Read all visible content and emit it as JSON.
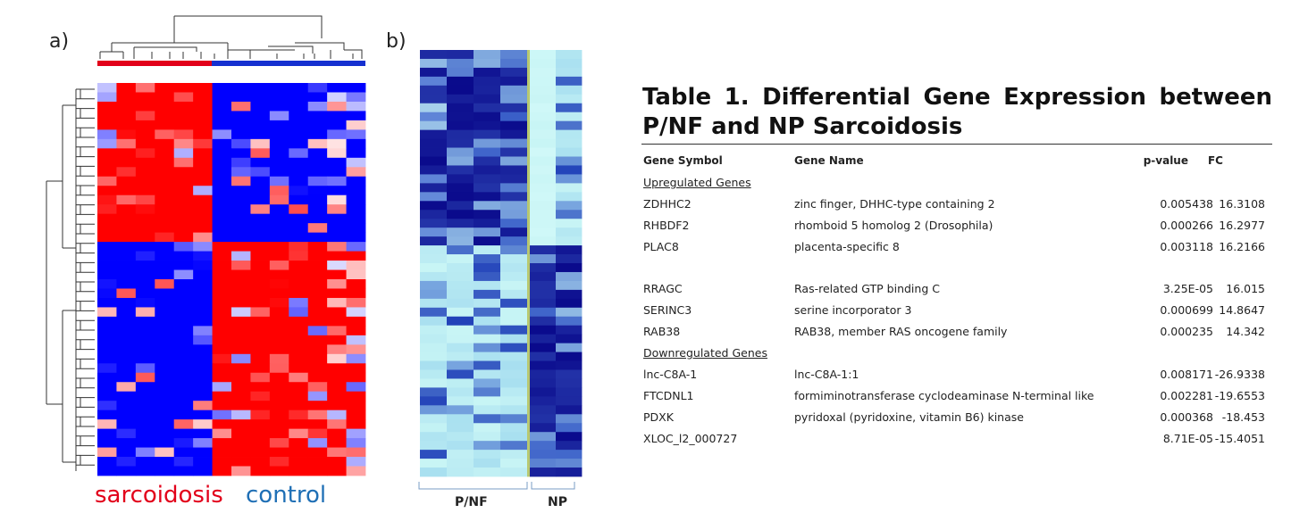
{
  "panel_a": {
    "label": "a)",
    "group_labels": {
      "sarcoidosis": "sarcoidosis",
      "control": "control"
    },
    "colors": {
      "high": "#ff0000",
      "low": "#0000ff",
      "mid": "#ffffff"
    }
  },
  "panel_b": {
    "label": "b)",
    "group_labels": {
      "pnf": "P/NF",
      "np": "NP"
    },
    "colors": {
      "high": "#0a0a8c",
      "low": "#c8f5f5"
    }
  },
  "table": {
    "title": "Table 1. Differential Gene Expression between P/NF and NP Sarcoidosis",
    "headers": {
      "symbol": "Gene Symbol",
      "name": "Gene Name",
      "pvalue": "p-value",
      "fc": "FC"
    },
    "upregulated_label": "Upregulated Genes",
    "downregulated_label": "Downregulated Genes",
    "upregulated": [
      {
        "symbol": "ZDHHC2",
        "name": "zinc finger, DHHC-type containing 2",
        "pvalue": "0.005438",
        "fc": "16.3108"
      },
      {
        "symbol": "RHBDF2",
        "name": "rhomboid 5 homolog 2 (Drosophila)",
        "pvalue": "0.000266",
        "fc": "16.2977"
      },
      {
        "symbol": "PLAC8",
        "name": "placenta-specific 8",
        "pvalue": "0.003118",
        "fc": "16.2166"
      },
      {
        "symbol": "RRAGC",
        "name": "Ras-related GTP binding C",
        "pvalue": "3.25E-05",
        "fc": "16.015"
      },
      {
        "symbol": "SERINC3",
        "name": "serine incorporator 3",
        "pvalue": "0.000699",
        "fc": "14.8647"
      },
      {
        "symbol": "RAB38",
        "name": "RAB38, member RAS oncogene family",
        "pvalue": "0.000235",
        "fc": "14.342"
      }
    ],
    "downregulated": [
      {
        "symbol": "lnc-C8A-1",
        "name": "lnc-C8A-1:1",
        "pvalue": "0.008171",
        "fc": "-26.9338"
      },
      {
        "symbol": "FTCDNL1",
        "name": "formiminotransferase cyclodeaminase N-terminal like",
        "pvalue": "0.002281",
        "fc": "-19.6553"
      },
      {
        "symbol": "PDXK",
        "name": "pyridoxal (pyridoxine, vitamin B6) kinase",
        "pvalue": "0.000368",
        "fc": "-18.453"
      },
      {
        "symbol": "XLOC_l2_000727",
        "name": "",
        "pvalue": "8.71E-05",
        "fc": "-15.4051"
      }
    ]
  }
}
